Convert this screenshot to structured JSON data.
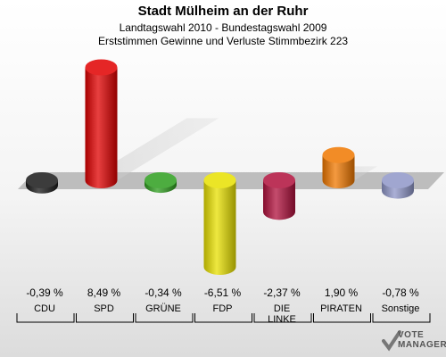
{
  "header": {
    "title": "Stadt Mülheim an der Ruhr",
    "subtitle": "Landtagswahl 2010 - Bundestagswahl 2009",
    "subtitle2": "Erststimmen Gewinne und Verluste Stimmbezirk 223"
  },
  "chart_data": {
    "type": "bar",
    "title": "Stadt Mülheim an der Ruhr",
    "subtitle": "Landtagswahl 2010 - Bundestagswahl 2009 | Erststimmen Gewinne und Verluste Stimmbezirk 223",
    "categories": [
      "CDU",
      "SPD",
      "GRÜNE",
      "FDP",
      "DIE LINKE",
      "PIRATEN",
      "Sonstige"
    ],
    "category_lines": [
      [
        "CDU"
      ],
      [
        "SPD"
      ],
      [
        "GRÜNE"
      ],
      [
        "FDP"
      ],
      [
        "DIE",
        "LINKE"
      ],
      [
        "PIRATEN"
      ],
      [
        "Sonstige"
      ]
    ],
    "values": [
      -0.39,
      8.49,
      -0.34,
      -6.51,
      -2.37,
      1.9,
      -0.78
    ],
    "value_labels": [
      "-0,39 %",
      "8,49 %",
      "-0,34 %",
      "-6,51 %",
      "-2,37 %",
      "1,90 %",
      "-0,78 %"
    ],
    "colors": [
      "#1a1a1a",
      "#e00000",
      "#2e9e1e",
      "#e8e000",
      "#b0103c",
      "#f07800",
      "#8f96c8"
    ],
    "unit": "%",
    "grid": false,
    "legend": "none"
  },
  "logo": {
    "line1": "VOTE",
    "line2": "MANAGER"
  }
}
